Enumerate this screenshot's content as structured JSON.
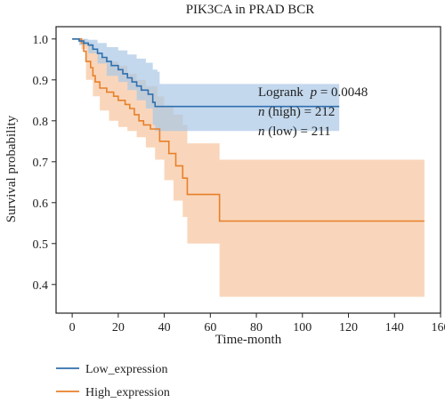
{
  "chart_data": {
    "type": "line",
    "title": "PIK3CA in PRAD BCR",
    "xlabel": "Time-month",
    "ylabel": "Survival probability",
    "xlim": [
      -7,
      160
    ],
    "ylim": [
      0.33,
      1.03
    ],
    "xticks": [
      0,
      20,
      40,
      60,
      80,
      100,
      120,
      140,
      160
    ],
    "yticks": [
      0.4,
      0.5,
      0.6,
      0.7,
      0.8,
      0.9,
      1.0
    ],
    "xtick_labels": [
      "0",
      "20",
      "40",
      "60",
      "80",
      "100",
      "120",
      "140",
      "160"
    ],
    "ytick_labels": [
      "0.4",
      "0.5",
      "0.6",
      "0.7",
      "0.8",
      "0.9",
      "1.0"
    ],
    "grid": false,
    "legend_position": "bottom-left",
    "annotations": {
      "logrank_label": "Logrank",
      "p_symbol": "p",
      "p_value": " = 0.0048",
      "n_symbol": "n",
      "n_high_text": " (high) = 212",
      "n_low_text": " (low) = 211"
    },
    "series": [
      {
        "name": "Low_expression",
        "color": "#2f6fae",
        "band_color": "#a9c8e6",
        "steps": [
          [
            0,
            1.0
          ],
          [
            3,
            0.995
          ],
          [
            5,
            0.99
          ],
          [
            7,
            0.985
          ],
          [
            9,
            0.975
          ],
          [
            11,
            0.965
          ],
          [
            13,
            0.955
          ],
          [
            15,
            0.945
          ],
          [
            17,
            0.935
          ],
          [
            20,
            0.925
          ],
          [
            22,
            0.915
          ],
          [
            24,
            0.905
          ],
          [
            26,
            0.895
          ],
          [
            28,
            0.885
          ],
          [
            30,
            0.875
          ],
          [
            33,
            0.865
          ],
          [
            35,
            0.845
          ],
          [
            36,
            0.835
          ],
          [
            116,
            0.835
          ]
        ],
        "upper": [
          [
            0,
            1.0
          ],
          [
            3,
            1.0
          ],
          [
            7,
            0.998
          ],
          [
            11,
            0.99
          ],
          [
            15,
            0.98
          ],
          [
            20,
            0.972
          ],
          [
            24,
            0.962
          ],
          [
            28,
            0.952
          ],
          [
            32,
            0.942
          ],
          [
            35,
            0.925
          ],
          [
            37,
            0.92
          ],
          [
            38,
            0.89
          ],
          [
            116,
            0.89
          ]
        ],
        "lower": [
          [
            0,
            1.0
          ],
          [
            3,
            0.985
          ],
          [
            7,
            0.965
          ],
          [
            11,
            0.94
          ],
          [
            15,
            0.91
          ],
          [
            20,
            0.895
          ],
          [
            24,
            0.875
          ],
          [
            28,
            0.85
          ],
          [
            32,
            0.83
          ],
          [
            35,
            0.79
          ],
          [
            36,
            0.775
          ],
          [
            116,
            0.775
          ]
        ]
      },
      {
        "name": "High_expression",
        "color": "#e8802a",
        "band_color": "#f7c8a4",
        "steps": [
          [
            0,
            1.0
          ],
          [
            4,
            0.99
          ],
          [
            5,
            0.97
          ],
          [
            6,
            0.945
          ],
          [
            8,
            0.93
          ],
          [
            9,
            0.91
          ],
          [
            10,
            0.895
          ],
          [
            12,
            0.88
          ],
          [
            15,
            0.87
          ],
          [
            18,
            0.86
          ],
          [
            20,
            0.85
          ],
          [
            23,
            0.84
          ],
          [
            25,
            0.83
          ],
          [
            27,
            0.815
          ],
          [
            29,
            0.8
          ],
          [
            31,
            0.79
          ],
          [
            34,
            0.78
          ],
          [
            38,
            0.75
          ],
          [
            42,
            0.72
          ],
          [
            45,
            0.69
          ],
          [
            48,
            0.66
          ],
          [
            50,
            0.62
          ],
          [
            64,
            0.555
          ],
          [
            153,
            0.555
          ]
        ],
        "upper": [
          [
            0,
            1.0
          ],
          [
            4,
            1.0
          ],
          [
            6,
            0.99
          ],
          [
            9,
            0.97
          ],
          [
            12,
            0.955
          ],
          [
            16,
            0.945
          ],
          [
            20,
            0.935
          ],
          [
            24,
            0.915
          ],
          [
            28,
            0.9
          ],
          [
            32,
            0.885
          ],
          [
            37,
            0.86
          ],
          [
            40,
            0.835
          ],
          [
            44,
            0.815
          ],
          [
            48,
            0.79
          ],
          [
            50,
            0.745
          ],
          [
            63,
            0.745
          ],
          [
            64,
            0.705
          ],
          [
            153,
            0.705
          ]
        ],
        "lower": [
          [
            0,
            1.0
          ],
          [
            4,
            0.975
          ],
          [
            6,
            0.9
          ],
          [
            9,
            0.86
          ],
          [
            12,
            0.825
          ],
          [
            16,
            0.8
          ],
          [
            20,
            0.785
          ],
          [
            24,
            0.775
          ],
          [
            28,
            0.76
          ],
          [
            32,
            0.735
          ],
          [
            36,
            0.705
          ],
          [
            40,
            0.655
          ],
          [
            44,
            0.605
          ],
          [
            48,
            0.565
          ],
          [
            50,
            0.5
          ],
          [
            63,
            0.5
          ],
          [
            64,
            0.37
          ],
          [
            153,
            0.37
          ]
        ]
      }
    ]
  }
}
